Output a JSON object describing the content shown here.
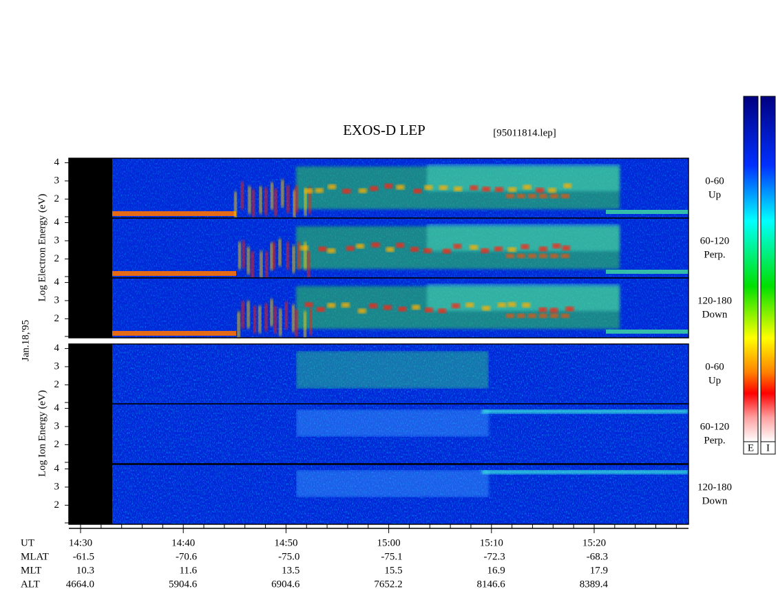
{
  "title": "EXOS-D LEP",
  "file": "[95011814.lep]",
  "date": "Jan.18,'95",
  "electron_ylabel": "Log  Electron  Energy (eV)",
  "ion_ylabel": "Log  Ion  Energy (eV)",
  "yticks": [
    2,
    3,
    4
  ],
  "ylim": [
    0.95,
    4.25
  ],
  "panels": [
    {
      "label": "0-60",
      "sub": "Up"
    },
    {
      "label": "60-120",
      "sub": "Perp."
    },
    {
      "label": "120-180",
      "sub": "Down"
    },
    {
      "label": "0-60",
      "sub": "Up"
    },
    {
      "label": "60-120",
      "sub": "Perp."
    },
    {
      "label": "120-180",
      "sub": "Down"
    }
  ],
  "colorbars": [
    "E",
    "I"
  ],
  "row_names": [
    "UT",
    "MLAT",
    "MLT",
    "ALT"
  ],
  "columns": [
    [
      "14:30",
      "-61.5",
      "10.3",
      "4664.0"
    ],
    [
      "14:40",
      "-70.6",
      "11.6",
      "5904.6"
    ],
    [
      "14:50",
      "-75.0",
      "13.5",
      "6904.6"
    ],
    [
      "15:00",
      "-75.1",
      "15.5",
      "7652.2"
    ],
    [
      "15:10",
      "-72.3",
      "16.9",
      "8146.6"
    ],
    [
      "15:20",
      "-68.3",
      "17.9",
      "8389.4"
    ]
  ]
}
